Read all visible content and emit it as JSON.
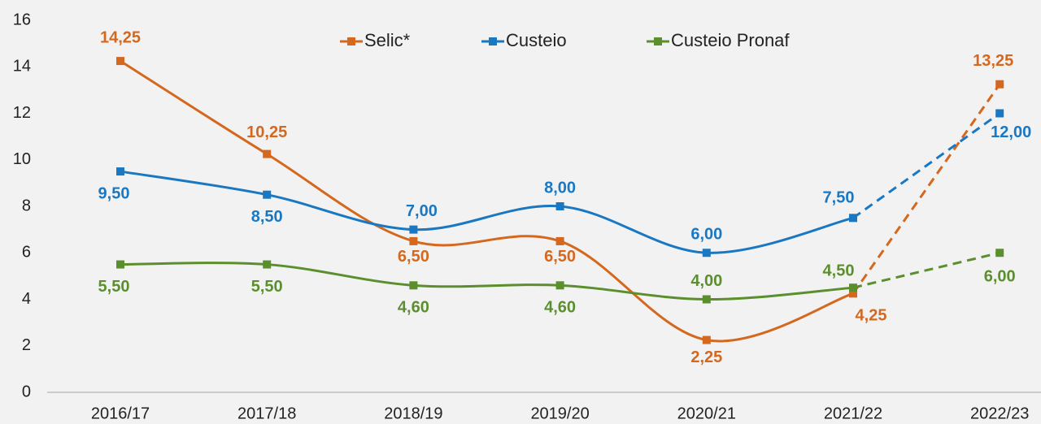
{
  "chart_data": {
    "type": "line",
    "categories": [
      "2016/17",
      "2017/18",
      "2018/19",
      "2019/20",
      "2020/21",
      "2021/22",
      "2022/23"
    ],
    "series": [
      {
        "name": "Selic*",
        "color": "#d4681e",
        "values": [
          14.25,
          10.25,
          6.5,
          6.5,
          2.25,
          4.25,
          13.25
        ],
        "value_labels": [
          "14,25",
          "10,25",
          "6,50",
          "6,50",
          "2,25",
          "4,25",
          "13,25"
        ]
      },
      {
        "name": "Custeio",
        "color": "#1a78c2",
        "values": [
          9.5,
          8.5,
          7,
          8,
          6,
          7.5,
          12
        ],
        "value_labels": [
          "9,50",
          "8,50",
          "7,00",
          "8,00",
          "6,00",
          "7,50",
          "12,00"
        ]
      },
      {
        "name": "Custeio Pronaf",
        "color": "#5b8f2e",
        "values": [
          5.5,
          5.5,
          4.6,
          4.6,
          4,
          4.5,
          6
        ],
        "value_labels": [
          "5,50",
          "5,50",
          "4,60",
          "4,60",
          "4,00",
          "4,50",
          "6,00"
        ]
      }
    ],
    "ylim": [
      0,
      16
    ],
    "yticks": [
      0,
      2,
      4,
      6,
      8,
      10,
      12,
      14,
      16
    ],
    "smooth": true,
    "dashed_last_segment": true,
    "legend": "top"
  }
}
